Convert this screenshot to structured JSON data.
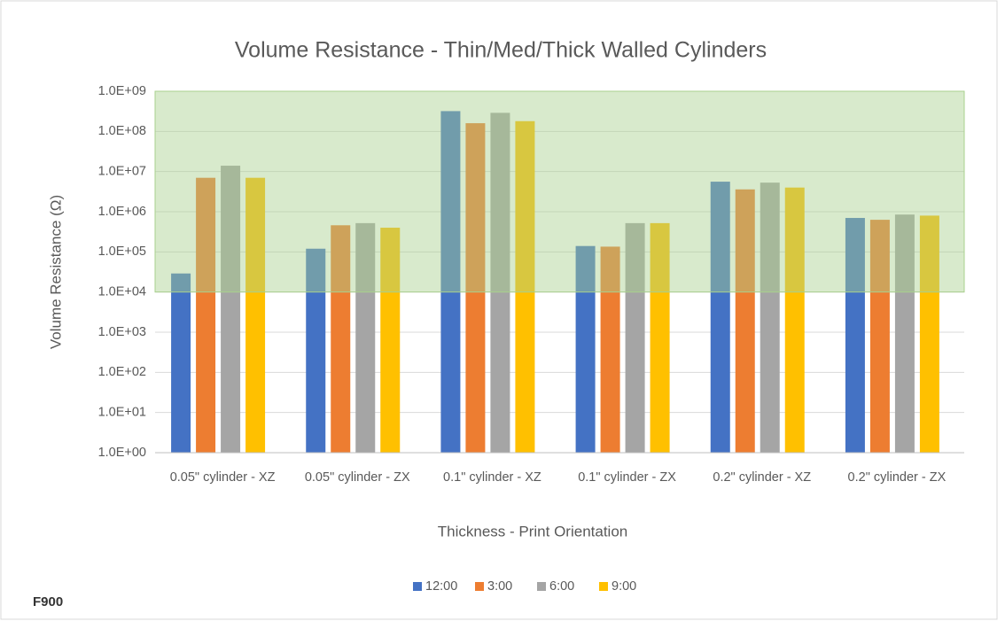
{
  "chart_data": {
    "type": "bar",
    "title": "Volume Resistance - Thin/Med/Thick Walled Cylinders",
    "x_label": "Thickness - Print Orientation",
    "y_label": "Volume Resistance (Ω)",
    "categories": [
      "0.05\" cylinder - XZ",
      "0.05\" cylinder - ZX",
      "0.1\" cylinder - XZ",
      "0.1\" cylinder - ZX",
      "0.2\" cylinder - XZ",
      "0.2\" cylinder - ZX"
    ],
    "series": [
      {
        "name": "12:00",
        "color": "#4472c4",
        "values": [
          29000,
          120000,
          320000000,
          140000,
          5600000,
          700000
        ]
      },
      {
        "name": "3:00",
        "color": "#ed7d31",
        "values": [
          7000000,
          460000,
          160000000,
          135000,
          3600000,
          630000
        ]
      },
      {
        "name": "6:00",
        "color": "#a5a5a5",
        "values": [
          14000000,
          520000,
          290000000,
          520000,
          5300000,
          850000
        ]
      },
      {
        "name": "9:00",
        "color": "#ffc000",
        "values": [
          7000000,
          400000,
          180000000,
          520000,
          4000000,
          800000
        ]
      }
    ],
    "log_scale": true,
    "ylim": [
      1,
      1000000000
    ],
    "yticks": [
      {
        "value": 1,
        "label": "1.0E+00"
      },
      {
        "value": 10,
        "label": "1.0E+01"
      },
      {
        "value": 100,
        "label": "1.0E+02"
      },
      {
        "value": 1000,
        "label": "1.0E+03"
      },
      {
        "value": 10000,
        "label": "1.0E+04"
      },
      {
        "value": 100000,
        "label": "1.0E+05"
      },
      {
        "value": 1000000,
        "label": "1.0E+06"
      },
      {
        "value": 10000000,
        "label": "1.0E+07"
      },
      {
        "value": 100000000,
        "label": "1.0E+08"
      },
      {
        "value": 1000000000,
        "label": "1.0E+09"
      }
    ],
    "shaded_range": [
      10000,
      1000000000
    ],
    "shaded_color": "#a9d08e",
    "grid": true,
    "legend": "bottom",
    "footnote": "F900"
  }
}
